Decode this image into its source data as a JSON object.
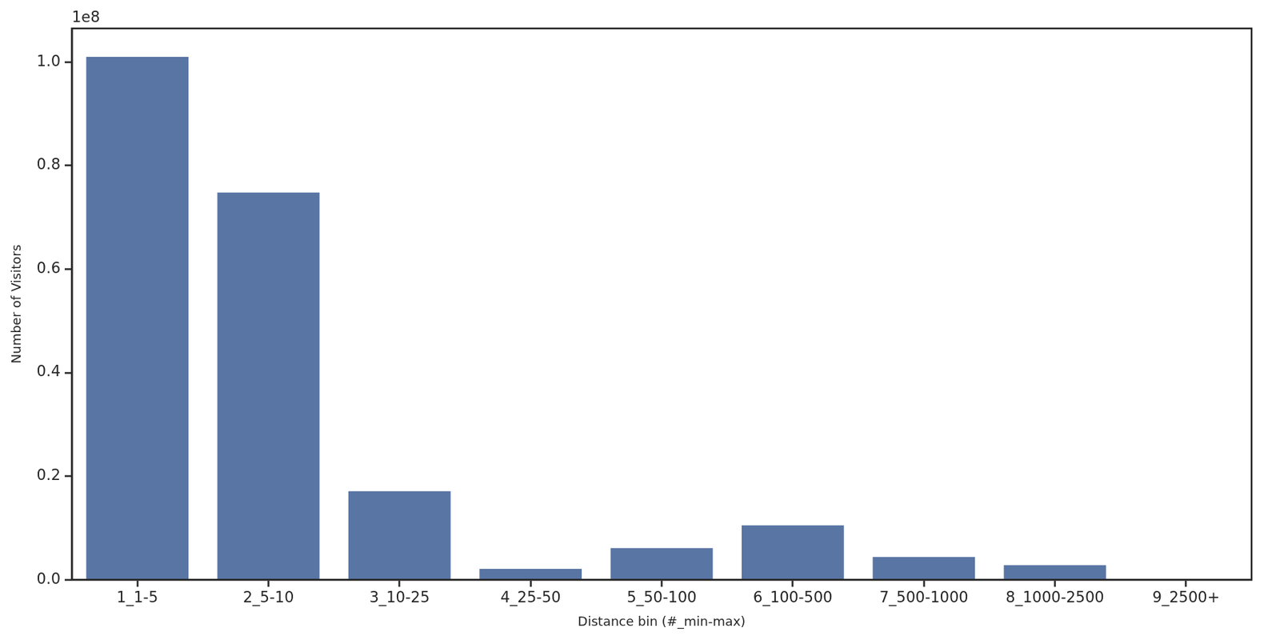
{
  "chart_data": {
    "type": "bar",
    "x_label": "Distance bin (#_min-max)",
    "y_label": "Number of Visitors",
    "annotations": [
      "1e8"
    ],
    "categories": [
      "1_1-5",
      "2_5-10",
      "3_10-25",
      "4_25-50",
      "5_50-100",
      "6_100-500",
      "7_500-1000",
      "8_1000-2500",
      "9_2500+"
    ],
    "values": [
      1.01,
      0.748,
      0.171,
      0.021,
      0.061,
      0.105,
      0.044,
      0.028,
      0.001
    ],
    "color": "#5975a4",
    "ylim": [
      0,
      1.065
    ],
    "yticks": [
      {
        "value": 0,
        "label": "0.0"
      },
      {
        "value": 0.2,
        "label": "0.2"
      },
      {
        "value": 0.4,
        "label": "0.4"
      },
      {
        "value": 0.6,
        "label": "0.6"
      },
      {
        "value": 0.8,
        "label": "0.8"
      },
      {
        "value": 1,
        "label": "1.0"
      }
    ],
    "grid": false
  }
}
